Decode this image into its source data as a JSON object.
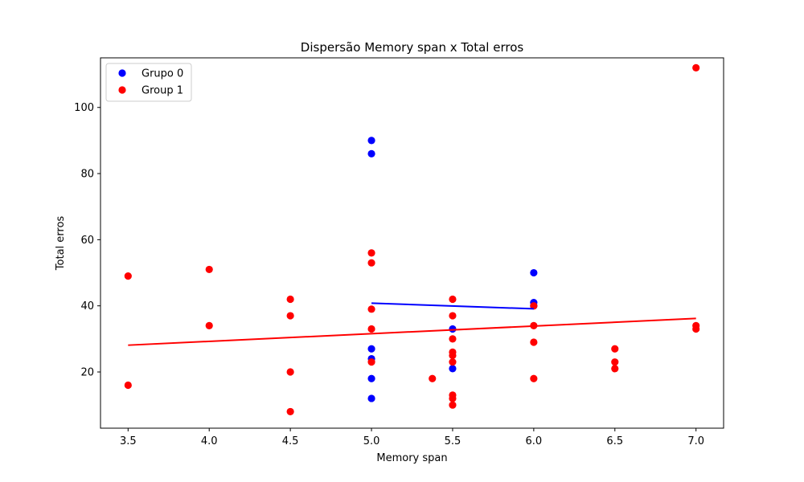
{
  "chart_data": {
    "type": "scatter",
    "title": "Dispersão Memory span x Total erros",
    "xlabel": "Memory span",
    "ylabel": "Total erros",
    "xlim": [
      3.33,
      7.17
    ],
    "ylim": [
      3,
      115
    ],
    "xticks": [
      "3.5",
      "4.0",
      "4.5",
      "5.0",
      "5.5",
      "6.0",
      "6.5",
      "7.0"
    ],
    "yticks": [
      "20",
      "40",
      "60",
      "80",
      "100"
    ],
    "grid": false,
    "legend_position": "top-left",
    "series": [
      {
        "name": "Grupo 0",
        "color": "#0000ff",
        "points": [
          [
            5.0,
            90
          ],
          [
            5.0,
            86
          ],
          [
            5.0,
            27
          ],
          [
            5.0,
            24
          ],
          [
            5.0,
            18
          ],
          [
            5.0,
            12
          ],
          [
            5.5,
            33
          ],
          [
            5.5,
            21
          ],
          [
            6.0,
            50
          ],
          [
            6.0,
            41
          ],
          [
            6.0,
            40
          ]
        ],
        "trendline": [
          [
            5.0,
            40.8
          ],
          [
            6.0,
            39.1
          ]
        ]
      },
      {
        "name": "Group 1",
        "color": "#ff0000",
        "points": [
          [
            3.5,
            49
          ],
          [
            3.5,
            16
          ],
          [
            4.0,
            51
          ],
          [
            4.0,
            34
          ],
          [
            4.5,
            42
          ],
          [
            4.5,
            37
          ],
          [
            4.5,
            20
          ],
          [
            4.5,
            8
          ],
          [
            5.0,
            56
          ],
          [
            5.0,
            53
          ],
          [
            5.0,
            39
          ],
          [
            5.0,
            33
          ],
          [
            5.0,
            23
          ],
          [
            5.375,
            18
          ],
          [
            5.5,
            42
          ],
          [
            5.5,
            37
          ],
          [
            5.5,
            30
          ],
          [
            5.5,
            26
          ],
          [
            5.5,
            25
          ],
          [
            5.5,
            23
          ],
          [
            5.5,
            13
          ],
          [
            5.5,
            12
          ],
          [
            5.5,
            10
          ],
          [
            6.0,
            40
          ],
          [
            6.0,
            34
          ],
          [
            6.0,
            29
          ],
          [
            6.0,
            18
          ],
          [
            6.5,
            27
          ],
          [
            6.5,
            23
          ],
          [
            6.5,
            21
          ],
          [
            7.0,
            112
          ],
          [
            7.0,
            34
          ],
          [
            7.0,
            33
          ]
        ],
        "trendline": [
          [
            3.5,
            28.1
          ],
          [
            7.0,
            36.2
          ]
        ]
      }
    ]
  }
}
